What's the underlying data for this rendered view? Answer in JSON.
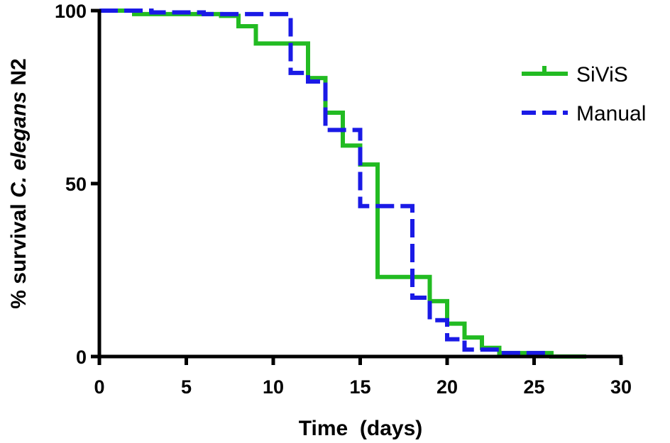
{
  "chart_data": {
    "type": "line",
    "subtype": "kaplan-meier step",
    "title": "",
    "xlabel": "Time  (days)",
    "ylabel_prefix": "% survival ",
    "ylabel_italic": "C. elegans",
    "ylabel_suffix": " N2",
    "xlim": [
      0,
      30
    ],
    "ylim": [
      0,
      100
    ],
    "xticks": [
      0,
      5,
      10,
      15,
      20,
      25,
      30
    ],
    "yticks": [
      0,
      50,
      100
    ],
    "legend_position": "top-right",
    "series": [
      {
        "name": "SiViS",
        "color": "#22bb22",
        "style": "solid",
        "x": [
          0,
          2,
          7,
          8,
          9,
          12,
          13,
          14,
          15,
          16,
          19,
          20,
          21,
          22,
          23,
          26,
          28
        ],
        "y": [
          100,
          99,
          98.5,
          95.5,
          90.5,
          80.5,
          70.5,
          61,
          55.5,
          23,
          16,
          9.5,
          5.5,
          2.5,
          1,
          0,
          0
        ]
      },
      {
        "name": "Manual",
        "color": "#1a1ae6",
        "style": "dashed",
        "x": [
          0,
          3,
          6,
          11,
          12,
          13,
          15,
          18,
          19,
          20,
          21,
          23,
          26
        ],
        "y": [
          100,
          99.5,
          99,
          82,
          79.5,
          65.5,
          43.5,
          17,
          10.5,
          5,
          2,
          1,
          1
        ]
      }
    ]
  }
}
